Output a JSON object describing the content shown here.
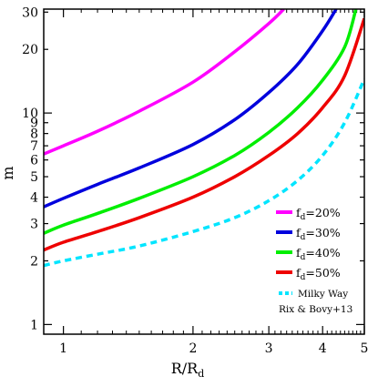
{
  "chart_data": {
    "type": "line",
    "xlabel_main": "R/R",
    "xlabel_sub": "d",
    "ylabel": "m",
    "xscale": "log",
    "yscale": "log",
    "xlim": [
      0.9,
      5.0
    ],
    "ylim": [
      0.9,
      31
    ],
    "x_ticks": [
      1,
      2,
      3,
      4,
      5
    ],
    "y_ticks": [
      1,
      2,
      3,
      4,
      5,
      6,
      7,
      8,
      9,
      10,
      20,
      30
    ],
    "grid": false,
    "legend_placement": "lower-right",
    "series": [
      {
        "name_main": "f",
        "name_sub": "d",
        "name_rest": "=20%",
        "color": "#ff00ff",
        "style": "solid",
        "x": [
          0.9,
          1.0,
          1.2,
          1.5,
          2.0,
          2.5,
          3.0,
          3.25
        ],
        "y": [
          6.4,
          7.0,
          8.2,
          10.2,
          14.0,
          19.5,
          26.5,
          31
        ]
      },
      {
        "name_main": "f",
        "name_sub": "d",
        "name_rest": "=30%",
        "color": "#0000dd",
        "style": "solid",
        "x": [
          0.9,
          1.0,
          1.2,
          1.5,
          2.0,
          2.5,
          3.0,
          3.5,
          4.0,
          4.3
        ],
        "y": [
          3.6,
          3.95,
          4.6,
          5.5,
          7.1,
          9.3,
          12.5,
          17.0,
          24.5,
          31
        ]
      },
      {
        "name_main": "f",
        "name_sub": "d",
        "name_rest": "=40%",
        "color": "#00ee00",
        "style": "solid",
        "x": [
          0.9,
          1.0,
          1.2,
          1.5,
          2.0,
          2.5,
          3.0,
          3.5,
          4.0,
          4.5,
          4.78
        ],
        "y": [
          2.7,
          2.95,
          3.35,
          3.95,
          5.0,
          6.3,
          8.1,
          10.6,
          14.3,
          20.5,
          31
        ]
      },
      {
        "name_main": "f",
        "name_sub": "d",
        "name_rest": "=50%",
        "color": "#ee0000",
        "style": "solid",
        "x": [
          0.9,
          1.0,
          1.2,
          1.5,
          2.0,
          2.5,
          3.0,
          3.5,
          4.0,
          4.5,
          5.0
        ],
        "y": [
          2.25,
          2.45,
          2.75,
          3.2,
          4.0,
          5.0,
          6.3,
          8.0,
          10.6,
          15.0,
          28.0
        ]
      },
      {
        "name": "Milky Way",
        "name_line2": "Rix & Bovy+13",
        "color": "#00e5ff",
        "style": "dashed",
        "x": [
          0.9,
          1.0,
          1.2,
          1.5,
          2.0,
          2.5,
          3.0,
          3.5,
          4.0,
          4.5,
          5.0
        ],
        "y": [
          1.9,
          2.0,
          2.15,
          2.35,
          2.75,
          3.2,
          3.85,
          4.8,
          6.3,
          9.0,
          14.5
        ]
      }
    ]
  }
}
